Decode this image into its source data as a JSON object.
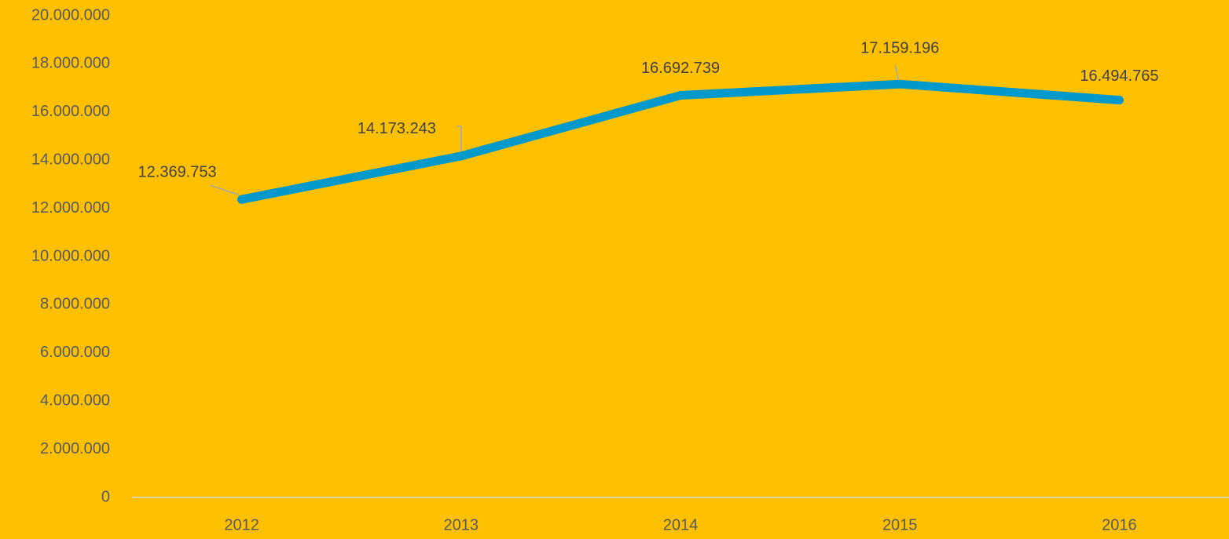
{
  "colors": {
    "background": "#FFC000",
    "series_line": "#0099CC",
    "tick_text": "#595959",
    "label_text": "#404040",
    "axis_line": "#D9D9D9",
    "leader_line": "#A6A6A6"
  },
  "chart_data": {
    "type": "line",
    "title": "",
    "xlabel": "",
    "ylabel": "",
    "categories": [
      "2012",
      "2013",
      "2014",
      "2015",
      "2016"
    ],
    "series": [
      {
        "values": [
          12369753,
          14173243,
          16692739,
          17159196,
          16494765
        ]
      }
    ],
    "data_labels": [
      "12.369.753",
      "14.173.243",
      "16.692.739",
      "17.159.196",
      "16.494.765"
    ],
    "ylim": [
      0,
      20000000
    ],
    "y_ticks": [
      0,
      2000000,
      4000000,
      6000000,
      8000000,
      10000000,
      12000000,
      14000000,
      16000000,
      18000000,
      20000000
    ],
    "y_tick_labels": [
      "0",
      "2.000.000",
      "4.000.000",
      "6.000.000",
      "8.000.000",
      "10.000.000",
      "12.000.000",
      "14.000.000",
      "16.000.000",
      "18.000.000",
      "20.000.000"
    ],
    "grid": false,
    "legend": "none"
  }
}
